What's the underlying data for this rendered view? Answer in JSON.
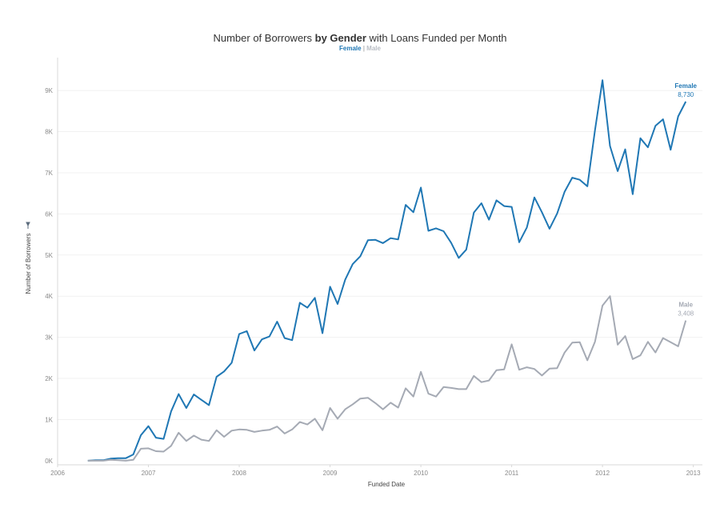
{
  "chart_data": {
    "type": "line",
    "title_prefix": "Number of Borrowers ",
    "title_bold": "by Gender",
    "title_suffix": " with Loans Funded per Month",
    "legend": {
      "female": "Female",
      "separator": "|",
      "male": "Male"
    },
    "xlabel": "Funded Date",
    "ylabel": "Number of Borrowers",
    "x_ticks": [
      "2006",
      "2007",
      "2008",
      "2009",
      "2010",
      "2011",
      "2012",
      "2013"
    ],
    "y_ticks": [
      "0K",
      "1K",
      "2K",
      "3K",
      "4K",
      "5K",
      "6K",
      "7K",
      "8K",
      "9K"
    ],
    "xlim": [
      2006,
      2013.1
    ],
    "ylim": [
      -100,
      9800
    ],
    "grid": true,
    "series": [
      {
        "name": "Female",
        "color": "#1f77b4",
        "end_label": "8,730",
        "x": [
          2006.333,
          2006.417,
          2006.5,
          2006.583,
          2006.667,
          2006.75,
          2006.833,
          2006.917,
          2007.0,
          2007.083,
          2007.167,
          2007.25,
          2007.333,
          2007.417,
          2007.5,
          2007.583,
          2007.667,
          2007.75,
          2007.833,
          2007.917,
          2008.0,
          2008.083,
          2008.167,
          2008.25,
          2008.333,
          2008.417,
          2008.5,
          2008.583,
          2008.667,
          2008.75,
          2008.833,
          2008.917,
          2009.0,
          2009.083,
          2009.167,
          2009.25,
          2009.333,
          2009.417,
          2009.5,
          2009.583,
          2009.667,
          2009.75,
          2009.833,
          2009.917,
          2010.0,
          2010.083,
          2010.167,
          2010.25,
          2010.333,
          2010.417,
          2010.5,
          2010.583,
          2010.667,
          2010.75,
          2010.833,
          2010.917,
          2011.0,
          2011.083,
          2011.167,
          2011.25,
          2011.333,
          2011.417,
          2011.5,
          2011.583,
          2011.667,
          2011.75,
          2011.833,
          2011.917,
          2012.0,
          2012.083,
          2012.167,
          2012.25,
          2012.333,
          2012.417,
          2012.5,
          2012.583,
          2012.667,
          2012.75,
          2012.833,
          2012.917
        ],
        "values": [
          0,
          10,
          10,
          50,
          60,
          60,
          150,
          620,
          840,
          560,
          530,
          1200,
          1620,
          1280,
          1610,
          1480,
          1350,
          2040,
          2170,
          2380,
          3080,
          3150,
          2680,
          2950,
          3020,
          3380,
          2980,
          2930,
          3840,
          3720,
          3960,
          3100,
          4230,
          3810,
          4400,
          4780,
          4970,
          5360,
          5370,
          5290,
          5410,
          5380,
          6220,
          6040,
          6640,
          5590,
          5650,
          5580,
          5300,
          4930,
          5130,
          6030,
          6260,
          5860,
          6330,
          6190,
          6170,
          5310,
          5670,
          6400,
          6040,
          5640,
          6010,
          6540,
          6880,
          6830,
          6670,
          8030,
          9250,
          7650,
          7040,
          7570,
          6480,
          7840,
          7620,
          8140,
          8300,
          7560,
          8370,
          8730
        ]
      },
      {
        "name": "Male",
        "color": "#a5aab4",
        "end_label": "3,408",
        "x": [
          2006.333,
          2006.417,
          2006.5,
          2006.583,
          2006.667,
          2006.75,
          2006.833,
          2006.917,
          2007.0,
          2007.083,
          2007.167,
          2007.25,
          2007.333,
          2007.417,
          2007.5,
          2007.583,
          2007.667,
          2007.75,
          2007.833,
          2007.917,
          2008.0,
          2008.083,
          2008.167,
          2008.25,
          2008.333,
          2008.417,
          2008.5,
          2008.583,
          2008.667,
          2008.75,
          2008.833,
          2008.917,
          2009.0,
          2009.083,
          2009.167,
          2009.25,
          2009.333,
          2009.417,
          2009.5,
          2009.583,
          2009.667,
          2009.75,
          2009.833,
          2009.917,
          2010.0,
          2010.083,
          2010.167,
          2010.25,
          2010.333,
          2010.417,
          2010.5,
          2010.583,
          2010.667,
          2010.75,
          2010.833,
          2010.917,
          2011.0,
          2011.083,
          2011.167,
          2011.25,
          2011.333,
          2011.417,
          2011.5,
          2011.583,
          2011.667,
          2011.75,
          2011.833,
          2011.917,
          2012.0,
          2012.083,
          2012.167,
          2012.25,
          2012.333,
          2012.417,
          2012.5,
          2012.583,
          2012.667,
          2012.75,
          2012.833,
          2012.917
        ],
        "values": [
          0,
          0,
          0,
          20,
          10,
          0,
          20,
          290,
          300,
          230,
          220,
          360,
          680,
          480,
          610,
          510,
          480,
          740,
          580,
          730,
          760,
          750,
          700,
          730,
          750,
          830,
          660,
          760,
          940,
          880,
          1020,
          740,
          1280,
          1020,
          1250,
          1370,
          1510,
          1530,
          1400,
          1250,
          1410,
          1290,
          1760,
          1560,
          2160,
          1630,
          1560,
          1790,
          1770,
          1740,
          1740,
          2060,
          1910,
          1950,
          2200,
          2220,
          2830,
          2210,
          2270,
          2230,
          2070,
          2240,
          2250,
          2630,
          2870,
          2880,
          2440,
          2890,
          3770,
          4000,
          2820,
          3030,
          2470,
          2560,
          2890,
          2630,
          2980,
          2880,
          2780,
          3408
        ]
      }
    ]
  }
}
